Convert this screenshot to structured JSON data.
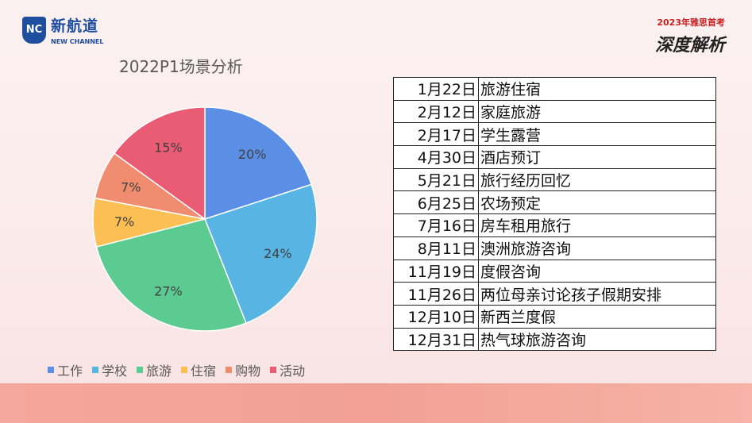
{
  "logo": {
    "mark": "NC",
    "name_cn": "新航道",
    "name_en": "NEW CHANNEL"
  },
  "badge": {
    "top": "2023年雅思首考",
    "main": "深度解析"
  },
  "chart_data": {
    "type": "pie",
    "title": "2022P1场景分析",
    "categories": [
      "工作",
      "学校",
      "旅游",
      "住宿",
      "购物",
      "活动"
    ],
    "values": [
      20,
      24,
      27,
      7,
      7,
      15
    ],
    "labels": [
      "20%",
      "24%",
      "27%",
      "7%",
      "7%",
      "15%"
    ],
    "colors": [
      "#5b8fe6",
      "#58b5e3",
      "#5ccb92",
      "#fbbf54",
      "#f08c6f",
      "#ea5b74"
    ],
    "legend_position": "bottom"
  },
  "schedule": [
    {
      "date": "1月22日",
      "event": "旅游住宿"
    },
    {
      "date": "2月12日",
      "event": "家庭旅游"
    },
    {
      "date": "2月17日",
      "event": "学生露营"
    },
    {
      "date": "4月30日",
      "event": "酒店预订"
    },
    {
      "date": "5月21日",
      "event": "旅行经历回忆"
    },
    {
      "date": "6月25日",
      "event": "农场预定"
    },
    {
      "date": "7月16日",
      "event": "房车租用旅行"
    },
    {
      "date": "8月11日",
      "event": "澳洲旅游咨询"
    },
    {
      "date": "11月19日",
      "event": "度假咨询"
    },
    {
      "date": "11月26日",
      "event": "两位母亲讨论孩子假期安排"
    },
    {
      "date": "12月10日",
      "event": "新西兰度假"
    },
    {
      "date": "12月31日",
      "event": "热气球旅游咨询"
    }
  ]
}
